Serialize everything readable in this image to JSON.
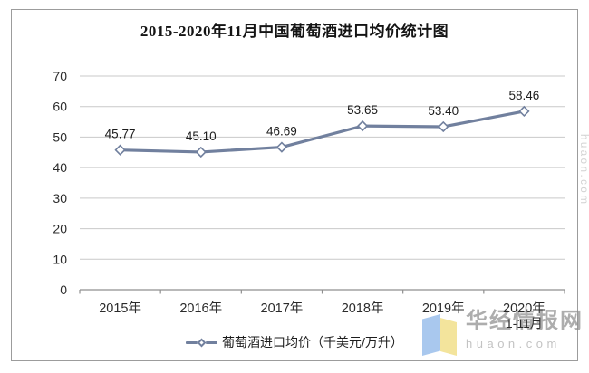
{
  "title": "2015-2020年11月中国葡萄酒进口均价统计图",
  "chart_data": {
    "type": "line",
    "title": "2015-2020年11月中国葡萄酒进口均价统计图",
    "categories": [
      "2015年",
      "2016年",
      "2017年",
      "2018年",
      "2019年",
      "2020年"
    ],
    "category_sublabels": [
      "",
      "",
      "",
      "",
      "",
      "1-11月"
    ],
    "series": [
      {
        "name": "葡萄酒进口均价（千美元/万升）",
        "values": [
          45.77,
          45.1,
          46.69,
          53.65,
          53.4,
          58.46
        ]
      }
    ],
    "data_labels": [
      "45.77",
      "45.10",
      "46.69",
      "53.65",
      "53.40",
      "58.46"
    ],
    "y_ticks": [
      0,
      10,
      20,
      30,
      40,
      50,
      60,
      70
    ],
    "ylim": [
      0,
      70
    ],
    "xlabel": "",
    "ylabel": "",
    "grid": true,
    "legend_position": "bottom",
    "marker": "diamond",
    "line_color": "#71809e",
    "grid_color": "#c9c9c9",
    "axis_color": "#8f8f8f"
  },
  "legend": {
    "label": "葡萄酒进口均价（千美元/万升）"
  },
  "watermark": {
    "brand": "华经情报网",
    "site": "huaon.com",
    "side_site": "huaon.com",
    "logo_colors": {
      "blue": "#a9c8ee",
      "yellow": "#f3e49c"
    }
  }
}
